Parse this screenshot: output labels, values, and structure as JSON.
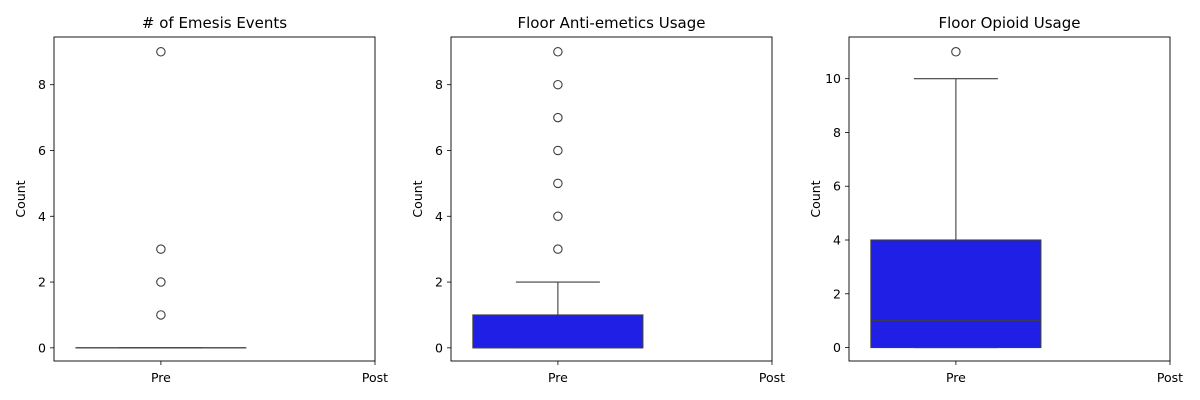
{
  "chart_data": [
    {
      "type": "box",
      "title": "# of Emesis Events",
      "xlabel": "",
      "ylabel": "Count",
      "categories": [
        "Pre",
        "Post"
      ],
      "ylim": [
        -0.4,
        9.45
      ],
      "yticks": [
        0,
        2,
        4,
        6,
        8
      ],
      "box_color": "#1f1fe6",
      "boxes": [
        {
          "category": "Pre",
          "q1": 0,
          "median": 0,
          "q3": 0,
          "whisker_low": 0,
          "whisker_high": 0,
          "outliers": [
            1,
            2,
            3,
            9
          ]
        }
      ]
    },
    {
      "type": "box",
      "title": "Floor Anti-emetics Usage",
      "xlabel": "",
      "ylabel": "Count",
      "categories": [
        "Pre",
        "Post"
      ],
      "ylim": [
        -0.4,
        9.45
      ],
      "yticks": [
        0,
        2,
        4,
        6,
        8
      ],
      "box_color": "#1f1fe6",
      "boxes": [
        {
          "category": "Pre",
          "q1": 0,
          "median": 0,
          "q3": 1,
          "whisker_low": 0,
          "whisker_high": 2,
          "outliers": [
            3,
            4,
            5,
            6,
            7,
            8,
            9
          ]
        }
      ]
    },
    {
      "type": "box",
      "title": "Floor Opioid Usage",
      "xlabel": "",
      "ylabel": "Count",
      "categories": [
        "Pre",
        "Post"
      ],
      "ylim": [
        -0.5,
        11.55
      ],
      "yticks": [
        0,
        2,
        4,
        6,
        8,
        10
      ],
      "box_color": "#1f1fe6",
      "boxes": [
        {
          "category": "Pre",
          "q1": 0,
          "median": 1,
          "q3": 4,
          "whisker_low": 0,
          "whisker_high": 10,
          "outliers": [
            11
          ]
        }
      ]
    }
  ]
}
